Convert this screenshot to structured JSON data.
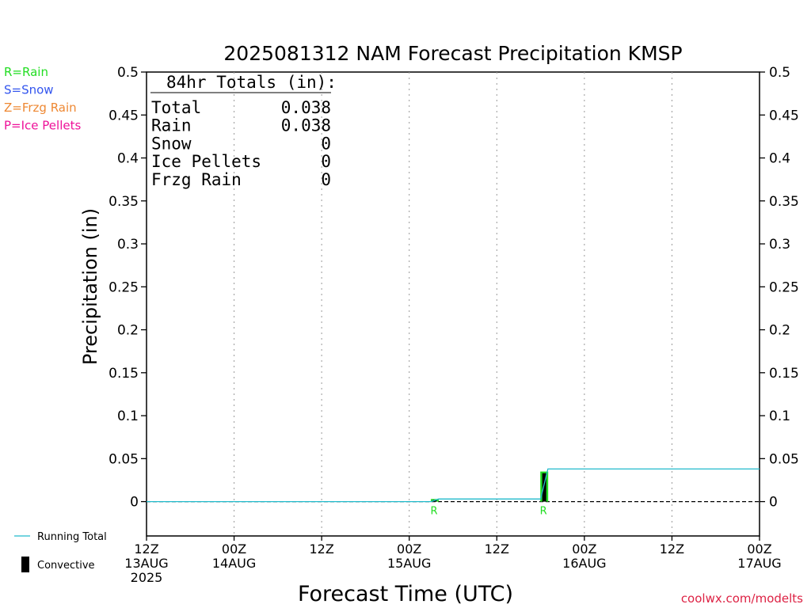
{
  "title": "2025081312 NAM Forecast Precipitation KMSP",
  "ylabel": "Precipitation (in)",
  "xlabel": "Forecast Time (UTC)",
  "credit": "coolwx.com/modelts",
  "legend_types": [
    {
      "label": "R=Rain",
      "color": "#22dd22"
    },
    {
      "label": "S=Snow",
      "color": "#3355ee"
    },
    {
      "label": "Z=Frzg Rain",
      "color": "#ee8833"
    },
    {
      "label": "P=Ice Pellets",
      "color": "#ee1199"
    }
  ],
  "legend_bottom": {
    "running_total": "Running Total",
    "convective": "Convective",
    "running_total_color": "#22bbcc"
  },
  "totals": {
    "heading": "84hr Totals (in):",
    "rows": [
      {
        "label": "Total",
        "value": "0.038"
      },
      {
        "label": "Rain",
        "value": "0.038"
      },
      {
        "label": "Snow",
        "value": "0"
      },
      {
        "label": "Ice Pellets",
        "value": "0"
      },
      {
        "label": "Frzg Rain",
        "value": "0"
      }
    ]
  },
  "chart_data": {
    "type": "bar",
    "title": "2025081312 NAM Forecast Precipitation KMSP",
    "xlabel": "Forecast Time (UTC)",
    "ylabel": "Precipitation (in)",
    "ylim": [
      -0.04,
      0.5
    ],
    "xlim": [
      0,
      84
    ],
    "yticks": [
      "0",
      "0.05",
      "0.1",
      "0.15",
      "0.2",
      "0.25",
      "0.3",
      "0.35",
      "0.4",
      "0.45",
      "0.5"
    ],
    "ytick_values": [
      0,
      0.05,
      0.1,
      0.15,
      0.2,
      0.25,
      0.3,
      0.35,
      0.4,
      0.45,
      0.5
    ],
    "xticks": [
      {
        "hour": 0,
        "lines": [
          "12Z",
          "13AUG",
          "2025"
        ]
      },
      {
        "hour": 12,
        "lines": [
          "00Z",
          "14AUG"
        ]
      },
      {
        "hour": 24,
        "lines": [
          "12Z"
        ]
      },
      {
        "hour": 36,
        "lines": [
          "00Z",
          "15AUG"
        ]
      },
      {
        "hour": 48,
        "lines": [
          "12Z"
        ]
      },
      {
        "hour": 60,
        "lines": [
          "00Z",
          "16AUG"
        ]
      },
      {
        "hour": 72,
        "lines": [
          "12Z"
        ]
      },
      {
        "hour": 84,
        "lines": [
          "00Z",
          "17AUG"
        ]
      }
    ],
    "grid": "vertical-dotted",
    "precip_bars": [
      {
        "hour": 39.5,
        "value": 0.003,
        "convective": 0.002,
        "type": "R"
      },
      {
        "hour": 54.5,
        "value": 0.035,
        "convective": 0.033,
        "type": "R"
      }
    ],
    "running_total": {
      "x": [
        0,
        39,
        40,
        54,
        55,
        84
      ],
      "y": [
        0,
        0,
        0.003,
        0.003,
        0.038,
        0.038
      ]
    }
  }
}
